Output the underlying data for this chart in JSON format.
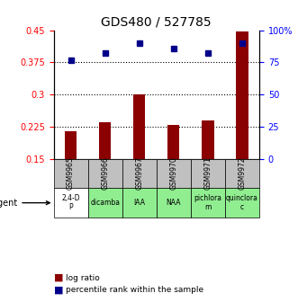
{
  "title": "GDS480 / 527785",
  "samples": [
    "GSM9965",
    "GSM9966",
    "GSM9967",
    "GSM9970",
    "GSM9971",
    "GSM9972"
  ],
  "agents": [
    "2,4-D\nP",
    "dicamba",
    "IAA",
    "NAA",
    "pichlora\nm",
    "quinclora\nc"
  ],
  "agent_colors": [
    "#ffffff",
    "#90EE90",
    "#90EE90",
    "#90EE90",
    "#90EE90",
    "#90EE90"
  ],
  "log_ratios": [
    0.215,
    0.235,
    0.3,
    0.23,
    0.24,
    0.447
  ],
  "percentile_ranks": [
    0.385,
    0.41,
    0.445,
    0.425,
    0.405,
    0.445
  ],
  "percentile_ranks_pct": [
    77,
    82,
    90,
    86,
    82,
    90
  ],
  "ylim_left": [
    0.15,
    0.45
  ],
  "ylim_right": [
    0,
    100
  ],
  "yticks_left": [
    0.15,
    0.225,
    0.3,
    0.375,
    0.45
  ],
  "yticks_right": [
    0,
    25,
    50,
    75,
    100
  ],
  "ytick_labels_left": [
    "0.15",
    "0.225",
    "0.3",
    "0.375",
    "0.45"
  ],
  "ytick_labels_right": [
    "0",
    "25",
    "50",
    "75",
    "100%"
  ],
  "hlines": [
    0.225,
    0.3,
    0.375
  ],
  "bar_color": "#8B0000",
  "dot_color": "#00008B",
  "sample_bg_color": "#C0C0C0",
  "legend_log_label": "log ratio",
  "legend_pct_label": "percentile rank within the sample"
}
